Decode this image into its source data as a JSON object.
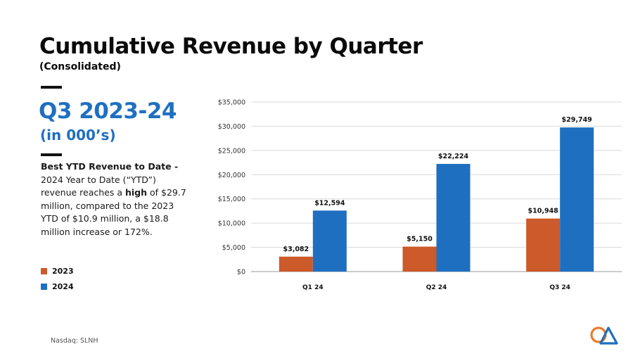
{
  "header": {
    "title": "Cumulative Revenue by Quarter",
    "subtitle": "(Consolidated)"
  },
  "sidebar": {
    "period": "Q3 2023-24",
    "units": "(in 000’s)",
    "desc_lead": "Best  YTD Revenue to Date - ",
    "desc_part1": "2024 Year to Date (“YTD”) revenue reaches a ",
    "desc_high": "high",
    "desc_part2": " of $29.7 million, compared to the 2023 YTD of $10.9 million, a $18.8 million increase or 172%."
  },
  "legend": [
    {
      "label": "2023",
      "color": "#cc5a2a"
    },
    {
      "label": "2024",
      "color": "#1f6fc1"
    }
  ],
  "footer": {
    "ticker": "Nasdaq: SLNH"
  },
  "logo": {
    "icon": "company-logo-icon",
    "colors": [
      "#e87b2c",
      "#1f6fc1"
    ]
  },
  "chart_data": {
    "type": "bar",
    "categories": [
      "Q1 24",
      "Q2 24",
      "Q3 24"
    ],
    "series": [
      {
        "name": "2023",
        "color": "#cc5a2a",
        "values": [
          3082,
          5150,
          10948
        ],
        "labels": [
          "$3,082",
          "$5,150",
          "$10,948"
        ]
      },
      {
        "name": "2024",
        "color": "#1f6fc1",
        "values": [
          12594,
          22224,
          29749
        ],
        "labels": [
          "$12,594",
          "$22,224",
          "$29,749"
        ]
      }
    ],
    "ylim": [
      0,
      35000
    ],
    "yticks": [
      0,
      5000,
      10000,
      15000,
      20000,
      25000,
      30000,
      35000
    ],
    "ytick_labels": [
      "$0",
      "$5,000",
      "$10,000",
      "$15,000",
      "$20,000",
      "$25,000",
      "$30,000",
      "$35,000"
    ],
    "grid": true,
    "legend_position": "left"
  }
}
